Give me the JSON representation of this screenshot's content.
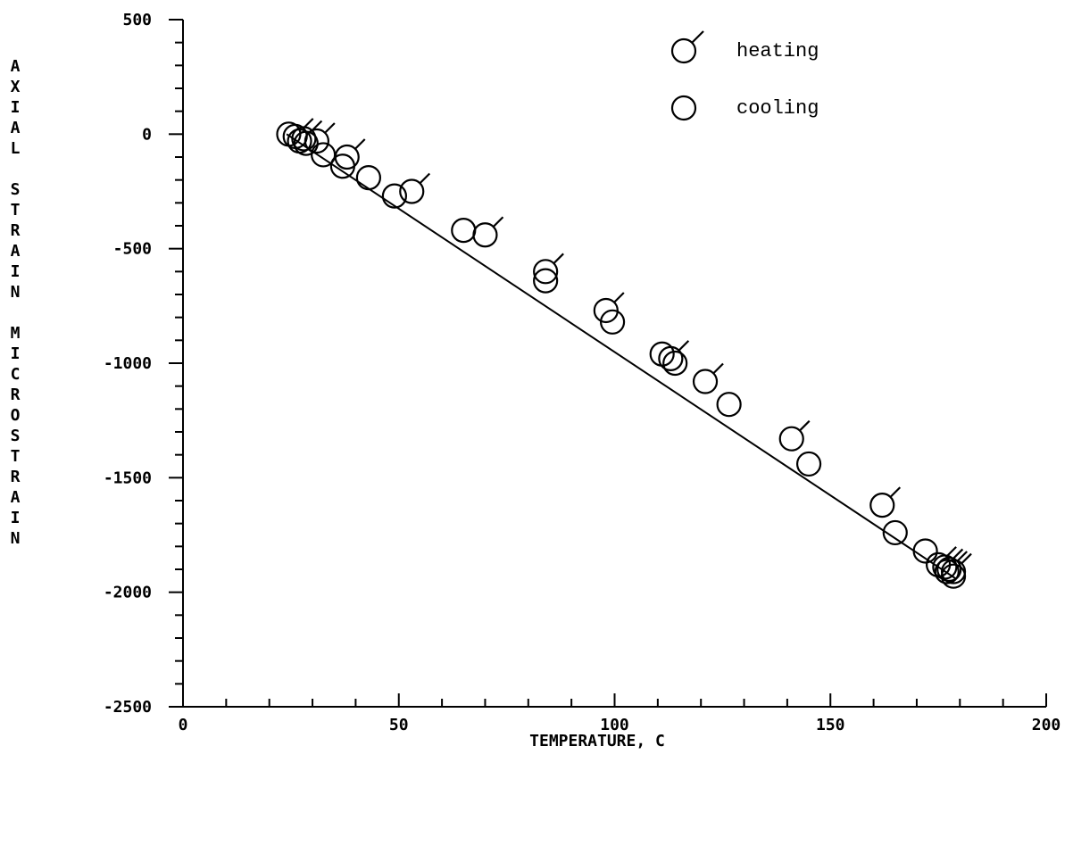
{
  "chart_data": {
    "type": "scatter",
    "title": "",
    "xlabel": "TEMPERATURE, C",
    "ylabel": "AXIAL STRAIN MICROSTRAIN",
    "ylabel_lines": [
      "AXIAL",
      "STRAIN",
      "MICROSTRAIN"
    ],
    "xlim": [
      0,
      200
    ],
    "ylim": [
      -2500,
      500
    ],
    "x_ticks": [
      0,
      50,
      100,
      150,
      200
    ],
    "x_tick_labels": [
      "0",
      "50",
      "100",
      "150",
      "200"
    ],
    "y_ticks": [
      500,
      0,
      -500,
      -1000,
      -1500,
      -2000,
      -2500
    ],
    "y_tick_labels": [
      "500",
      "0",
      "-500",
      "-1000",
      "-1500",
      "-2000",
      "-2500"
    ],
    "grid": false,
    "legend_position": "top-right",
    "fit_line": {
      "x": [
        24,
        179
      ],
      "y": [
        0,
        -1940
      ]
    },
    "series": [
      {
        "name": "heating",
        "marker": "circle-with-tick",
        "points": [
          [
            26,
            -10
          ],
          [
            28,
            -20
          ],
          [
            31,
            -30
          ],
          [
            38,
            -100
          ],
          [
            53,
            -250
          ],
          [
            70,
            -440
          ],
          [
            84,
            -600
          ],
          [
            98,
            -770
          ],
          [
            113,
            -980
          ],
          [
            121,
            -1080
          ],
          [
            141,
            -1330
          ],
          [
            162,
            -1620
          ],
          [
            175,
            -1880
          ],
          [
            176.5,
            -1890
          ],
          [
            177.5,
            -1900
          ],
          [
            178.5,
            -1910
          ]
        ]
      },
      {
        "name": "cooling",
        "marker": "circle",
        "points": [
          [
            24.5,
            0
          ],
          [
            27,
            -30
          ],
          [
            28.5,
            -40
          ],
          [
            32.5,
            -90
          ],
          [
            37,
            -140
          ],
          [
            43,
            -190
          ],
          [
            49,
            -270
          ],
          [
            65,
            -420
          ],
          [
            84,
            -640
          ],
          [
            99.5,
            -820
          ],
          [
            111,
            -960
          ],
          [
            114,
            -1000
          ],
          [
            126.5,
            -1180
          ],
          [
            145,
            -1440
          ],
          [
            165,
            -1740
          ],
          [
            172,
            -1820
          ],
          [
            177,
            -1910
          ],
          [
            178.5,
            -1930
          ]
        ]
      }
    ]
  }
}
